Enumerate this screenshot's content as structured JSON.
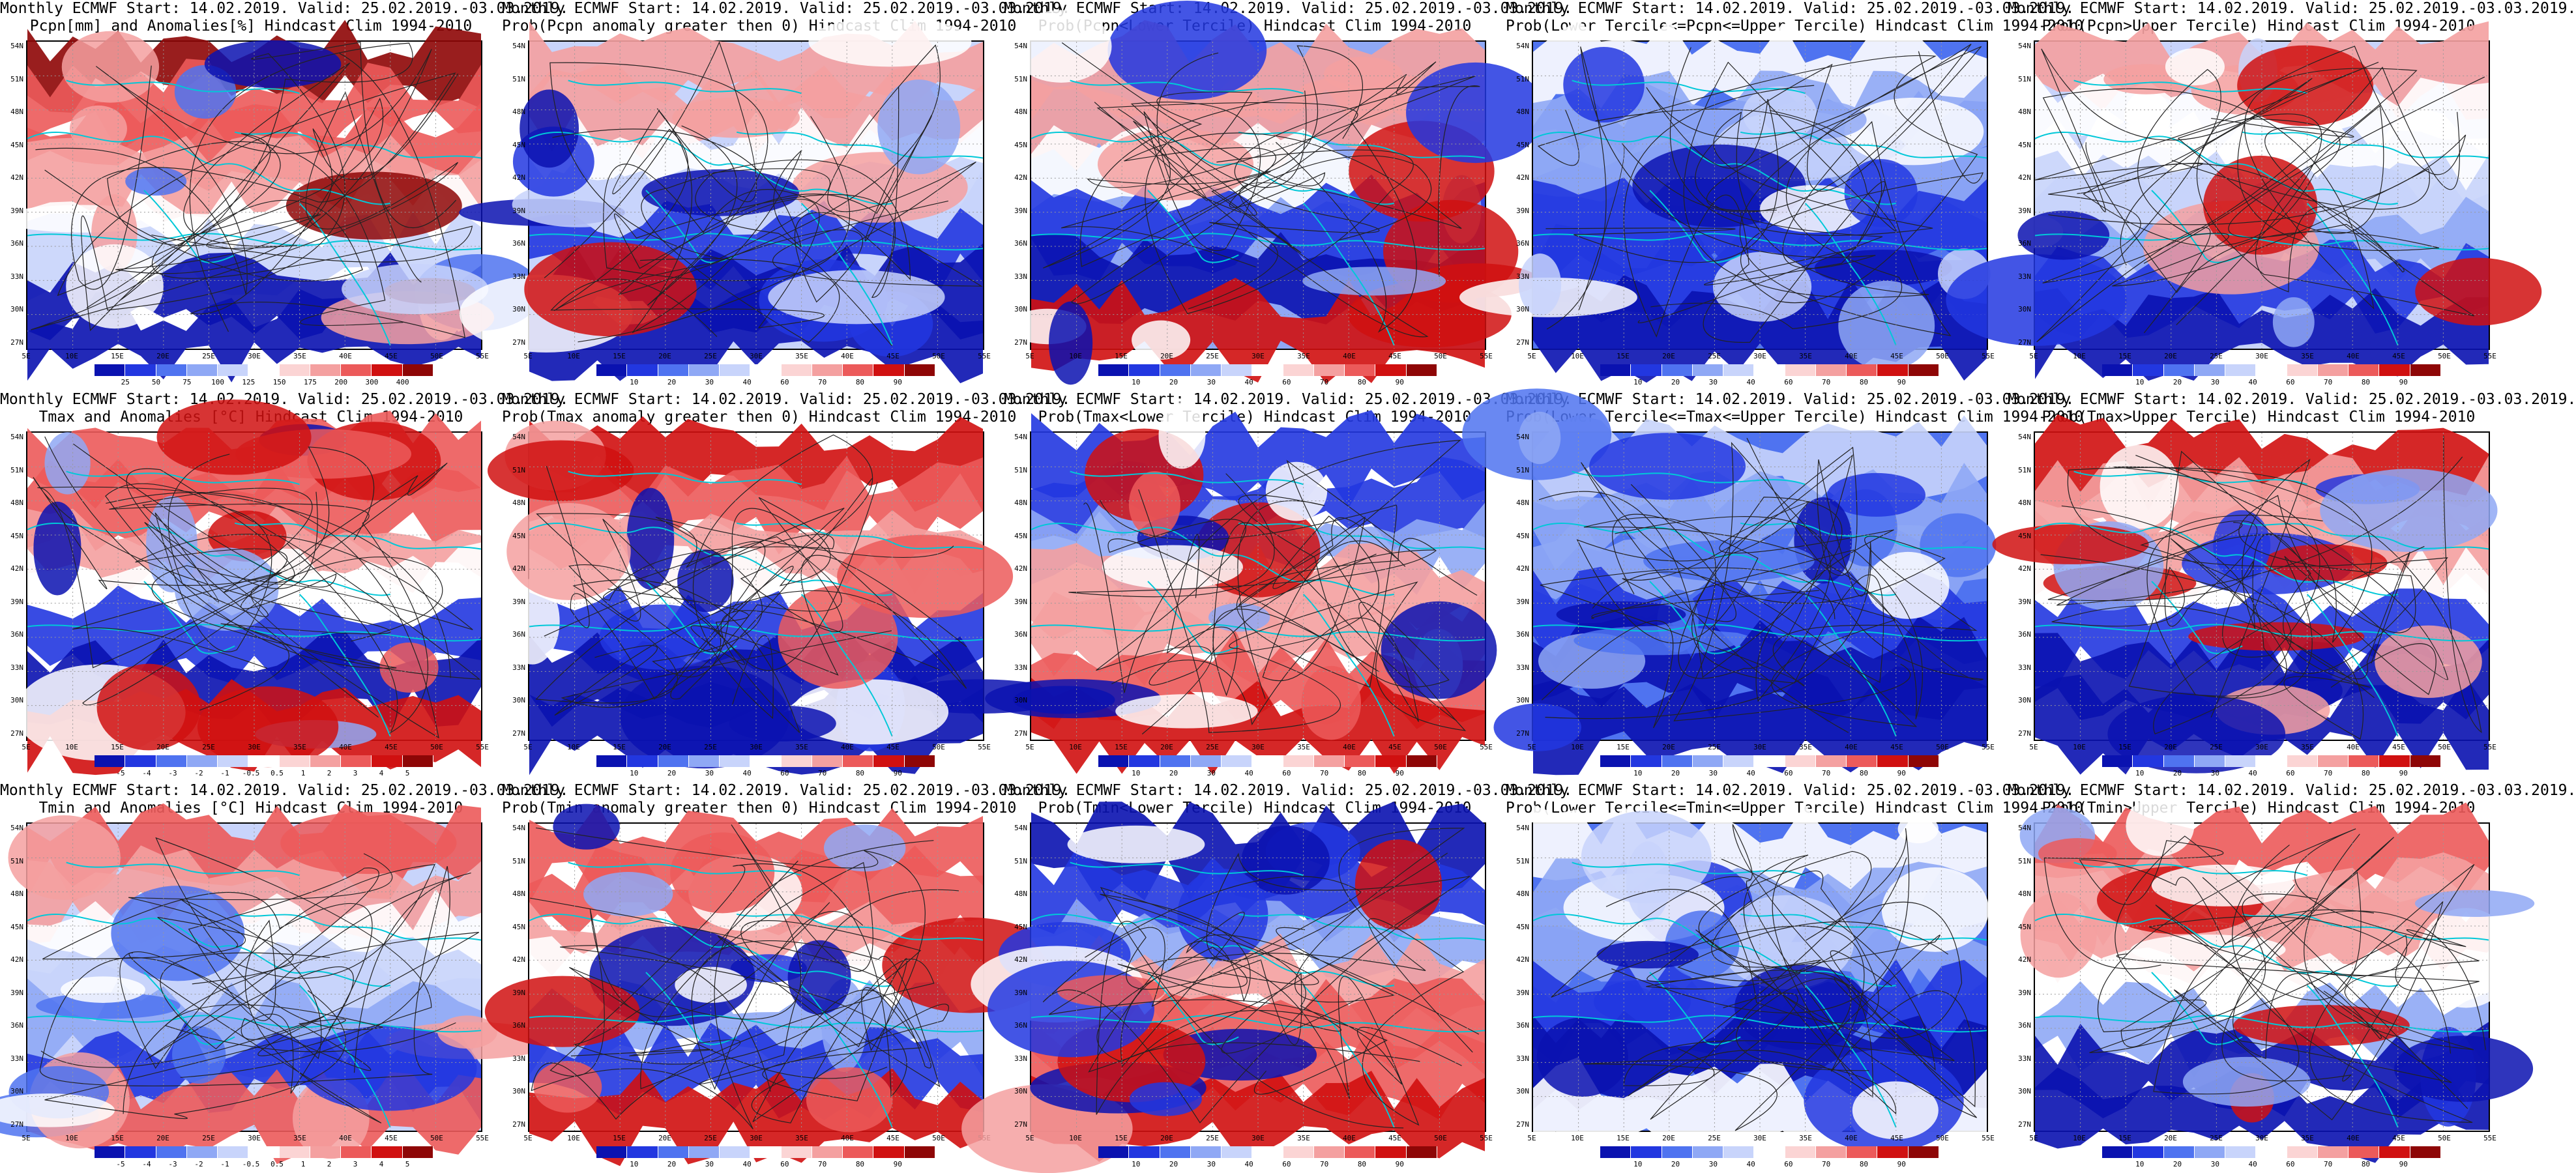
{
  "grid": {
    "rows": 3,
    "cols": 5
  },
  "axes": {
    "lat_labels": [
      "54N",
      "51N",
      "48N",
      "45N",
      "42N",
      "39N",
      "36N",
      "33N",
      "30N",
      "27N"
    ],
    "lon_labels": [
      "5E",
      "10E",
      "15E",
      "20E",
      "25E",
      "30E",
      "35E",
      "40E",
      "45E",
      "50E",
      "55E"
    ]
  },
  "colorbars": {
    "prob": {
      "colors": [
        "#0a12b0",
        "#2237e0",
        "#4f73f0",
        "#8fa8f5",
        "#c8d4fb",
        "#ffffff",
        "#fbd4d4",
        "#f4a0a0",
        "#ec5a5a",
        "#d01010",
        "#8e0606"
      ],
      "ticks": [
        "10",
        "20",
        "30",
        "40",
        "60",
        "70",
        "80",
        "90"
      ]
    },
    "pcpn": {
      "colors": [
        "#0a12b0",
        "#2237e0",
        "#4f73f0",
        "#8fa8f5",
        "#c8d4fb",
        "#ffffff",
        "#fbd4d4",
        "#f4a0a0",
        "#ec5a5a",
        "#d01010",
        "#8e0606"
      ],
      "ticks": [
        "25",
        "50",
        "75",
        "100",
        "125",
        "150",
        "175",
        "200",
        "300",
        "400"
      ]
    },
    "temp": {
      "colors": [
        "#0a12b0",
        "#2237e0",
        "#4f73f0",
        "#8fa8f5",
        "#c8d4fb",
        "#ffffff",
        "#fbd4d4",
        "#f4a0a0",
        "#ec5a5a",
        "#d01010",
        "#8e0606"
      ],
      "ticks": [
        "-5",
        "-4",
        "-3",
        "-2",
        "-1",
        "-0.5",
        "0.5",
        "1",
        "2",
        "3",
        "4",
        "5"
      ]
    }
  },
  "panels": [
    {
      "title1": "Monthly ECMWF Start: 14.02.2019. Valid: 25.02.2019.-03.03.2019.",
      "title2": "Pcpn[mm] and Anomalies[%] Hindcast Clim 1994-2010",
      "bar": "pcpn",
      "scheme": "pcpn"
    },
    {
      "title1": "Monthly ECMWF Start: 14.02.2019. Valid: 25.02.2019.-03.03.2019.",
      "title2": "Prob(Pcpn anomaly greater then 0) Hindcast Clim 1994-2010",
      "bar": "prob",
      "scheme": "pcpn_prob"
    },
    {
      "title1": "Monthly ECMWF Start: 14.02.2019. Valid: 25.02.2019.-03.03.2019.",
      "title2": "Prob(Pcpn<Lower Tercile) Hindcast Clim 1994-2010",
      "bar": "prob",
      "scheme": "pcpn_low"
    },
    {
      "title1": "Monthly ECMWF Start: 14.02.2019. Valid: 25.02.2019.-03.03.2019.",
      "title2": "Prob(Lower Tercile<=Pcpn<=Upper Tercile) Hindcast Clim 1994-2010",
      "bar": "prob",
      "scheme": "mid_blue"
    },
    {
      "title1": "Monthly ECMWF Start: 14.02.2019. Valid: 25.02.2019.-03.03.2019.",
      "title2": "Prob(Pcpn>Upper Tercile) Hindcast Clim 1994-2010",
      "bar": "prob",
      "scheme": "pcpn_prob"
    },
    {
      "title1": "Monthly ECMWF Start: 14.02.2019. Valid: 25.02.2019.-03.03.2019.",
      "title2": "Tmax and Anomalies [°C] Hindcast Clim 1994-2010",
      "bar": "temp",
      "scheme": "warm_nw"
    },
    {
      "title1": "Monthly ECMWF Start: 14.02.2019. Valid: 25.02.2019.-03.03.2019.",
      "title2": "Prob(Tmax anomaly greater then 0) Hindcast Clim 1994-2010",
      "bar": "prob",
      "scheme": "warm_nw"
    },
    {
      "title1": "Monthly ECMWF Start: 14.02.2019. Valid: 25.02.2019.-03.03.2019.",
      "title2": "Prob(Tmax<Lower Tercile) Hindcast Clim 1994-2010",
      "bar": "prob",
      "scheme": "cold_prob"
    },
    {
      "title1": "Monthly ECMWF Start: 14.02.2019. Valid: 25.02.2019.-03.03.2019.",
      "title2": "Prob(Lower Tercile<=Tmax<=Upper Tercile) Hindcast Clim 1994-2010",
      "bar": "prob",
      "scheme": "mid_blue"
    },
    {
      "title1": "Monthly ECMWF Start: 14.02.2019. Valid: 25.02.2019.-03.03.2019.",
      "title2": "Prob(Tmax>Upper Tercile) Hindcast Clim 1994-2010",
      "bar": "prob",
      "scheme": "warm_nw"
    },
    {
      "title1": "Monthly ECMWF Start: 14.02.2019. Valid: 25.02.2019.-03.03.2019.",
      "title2": "Tmin and Anomalies [°C] Hindcast Clim 1994-2010",
      "bar": "temp",
      "scheme": "warm_nw_soft"
    },
    {
      "title1": "Monthly ECMWF Start: 14.02.2019. Valid: 25.02.2019.-03.03.2019.",
      "title2": "Prob(Tmin anomaly greater then 0) Hindcast Clim 1994-2010",
      "bar": "prob",
      "scheme": "warm_nw"
    },
    {
      "title1": "Monthly ECMWF Start: 14.02.2019. Valid: 25.02.2019.-03.03.2019.",
      "title2": "Prob(Tmin<Lower Tercile) Hindcast Clim 1994-2010",
      "bar": "prob",
      "scheme": "cold_prob"
    },
    {
      "title1": "Monthly ECMWF Start: 14.02.2019. Valid: 25.02.2019.-03.03.2019.",
      "title2": "Prob(Lower Tercile<=Tmin<=Upper Tercile) Hindcast Clim 1994-2010",
      "bar": "prob",
      "scheme": "mid_blue"
    },
    {
      "title1": "Monthly ECMWF Start: 14.02.2019. Valid: 25.02.2019.-03.03.2019.",
      "title2": "Prob(Tmin>Upper Tercile) Hindcast Clim 1994-2010",
      "bar": "prob",
      "scheme": "warm_nw"
    }
  ]
}
